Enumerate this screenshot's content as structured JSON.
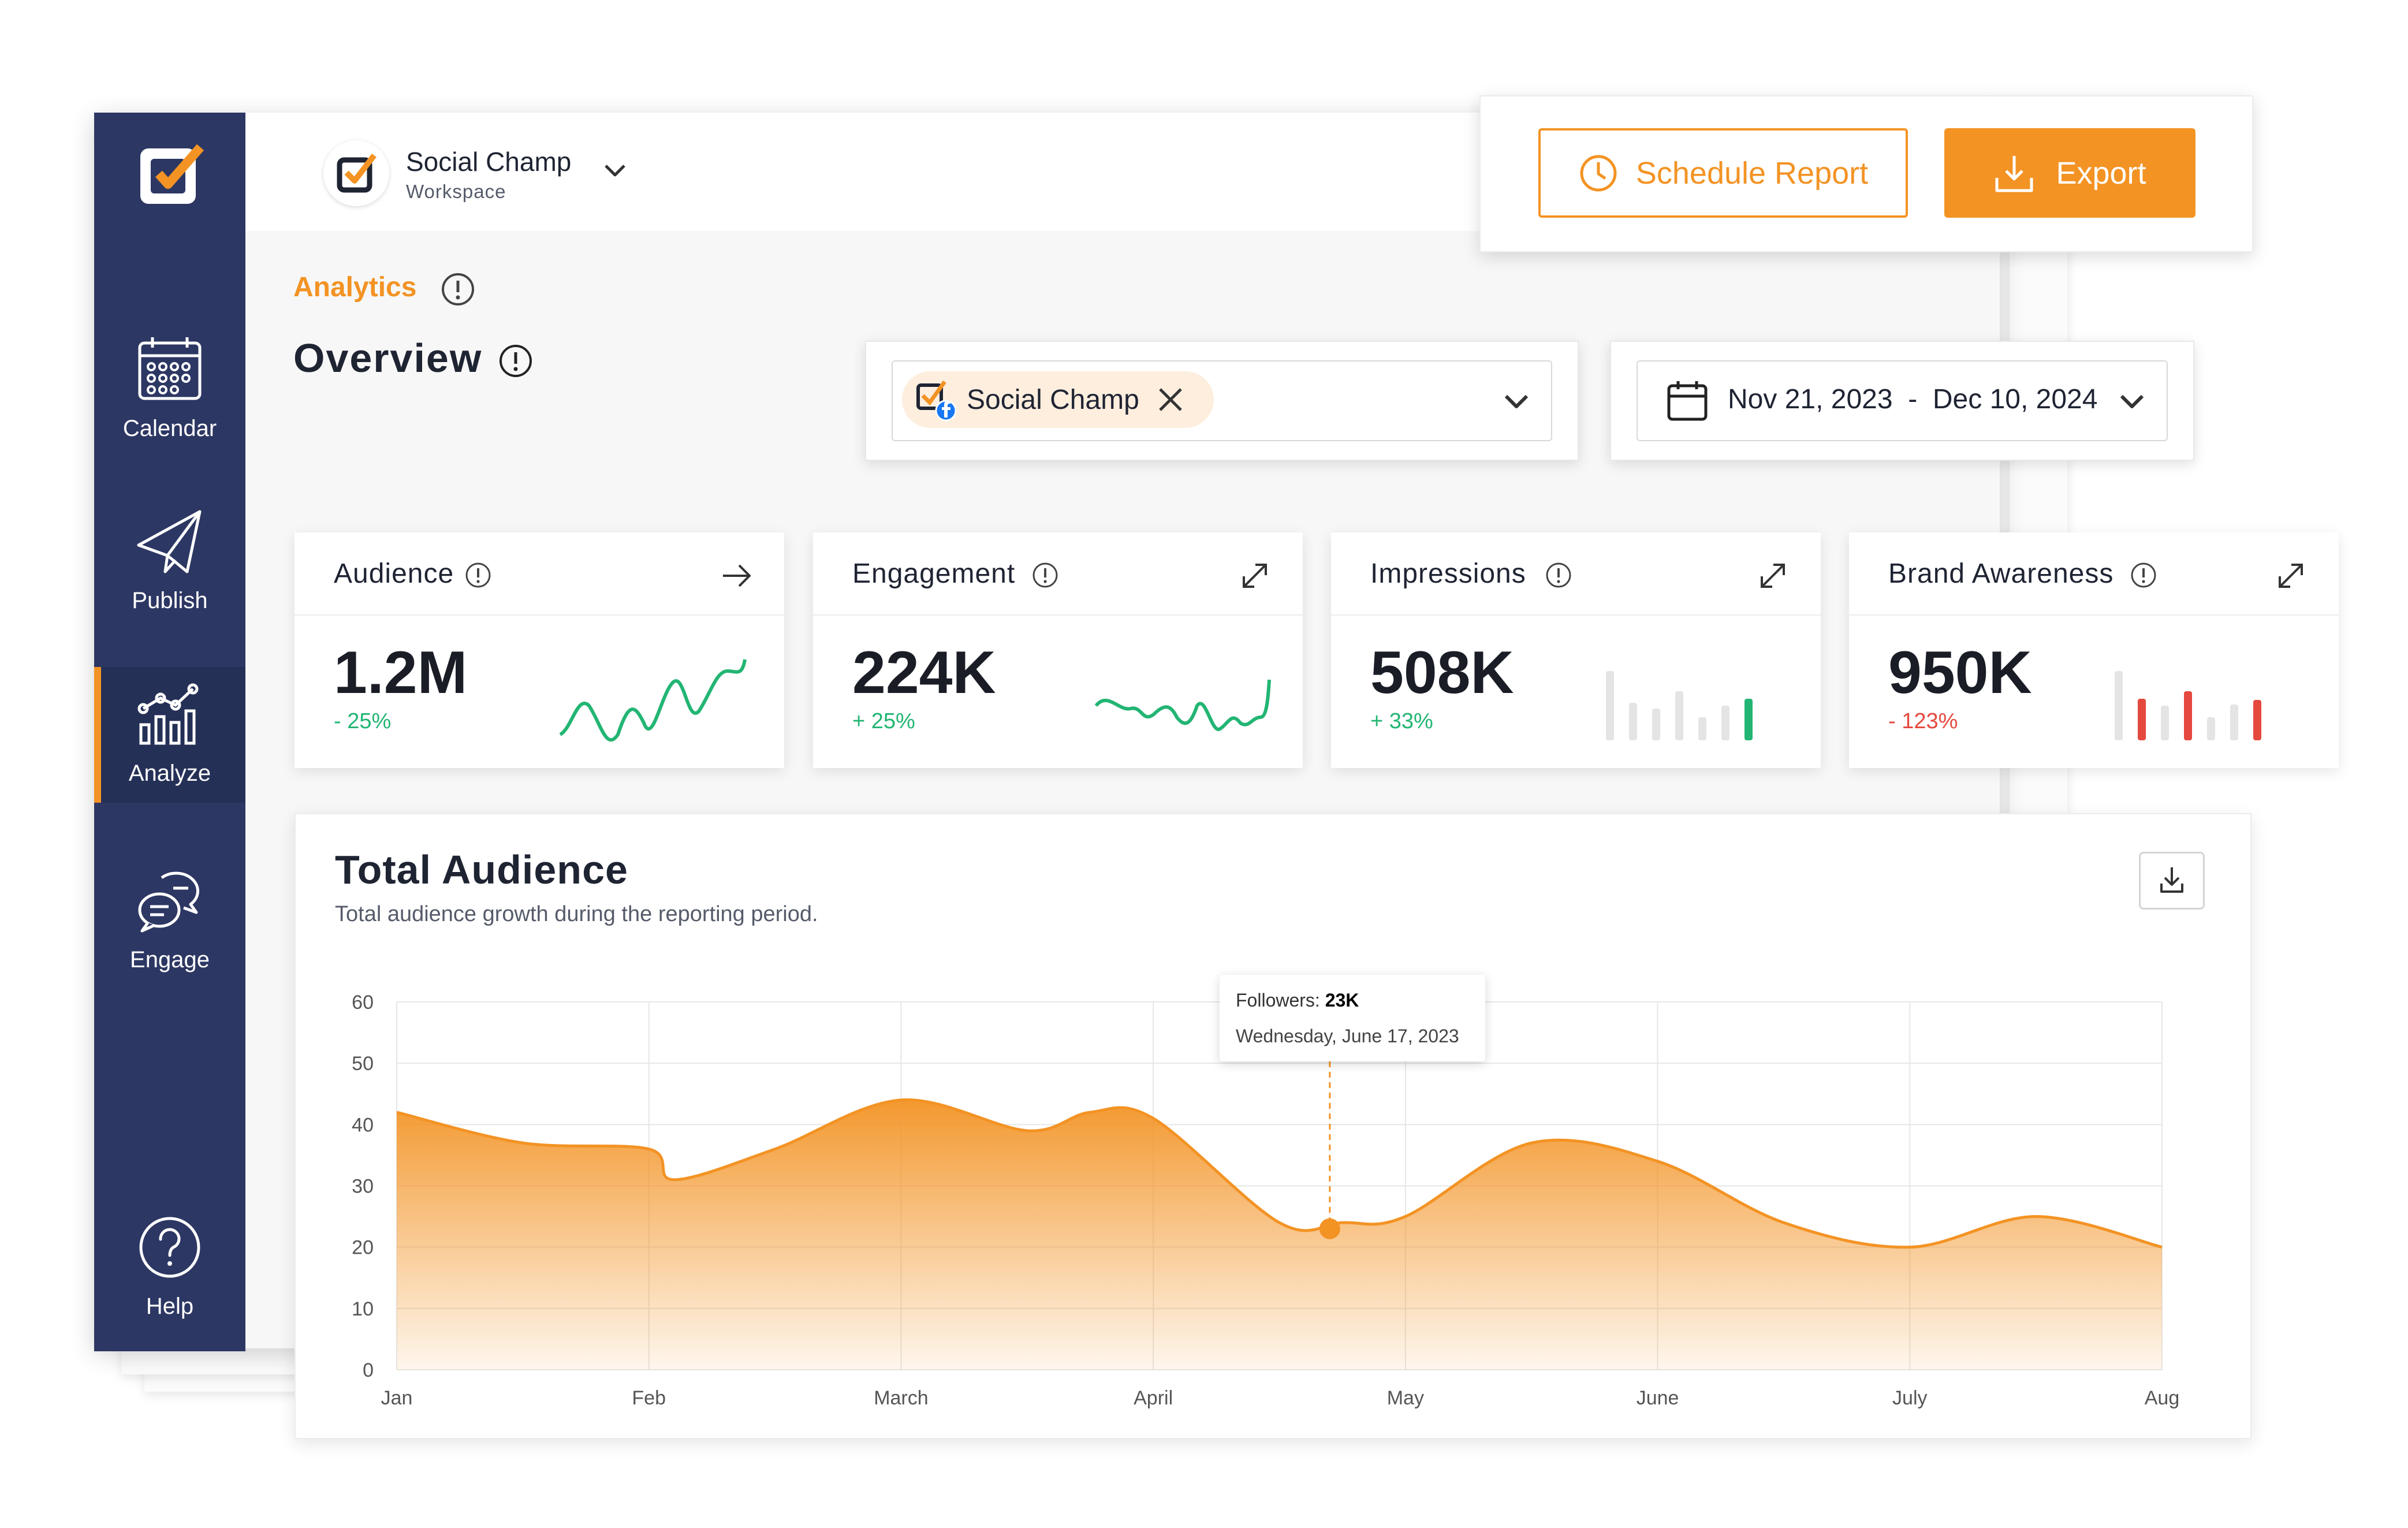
{
  "workspace": {
    "name": "Social Champ",
    "subtitle": "Workspace"
  },
  "sidebar": {
    "items": [
      {
        "label": "Calendar",
        "icon": "calendar-icon",
        "active": false
      },
      {
        "label": "Publish",
        "icon": "paper-plane-icon",
        "active": false
      },
      {
        "label": "Analyze",
        "icon": "analytics-icon",
        "active": true
      },
      {
        "label": "Engage",
        "icon": "chat-bubbles-icon",
        "active": false
      },
      {
        "label": "Help",
        "icon": "help-icon",
        "active": false
      }
    ]
  },
  "actions": {
    "schedule_label": "Schedule Report",
    "export_label": "Export"
  },
  "breadcrumb": "Analytics",
  "page_title": "Overview",
  "filters": {
    "account_chip": "Social Champ",
    "date_range": "Nov 21, 2023  -  Dec 10, 2024"
  },
  "stats": [
    {
      "label": "Audience",
      "value": "1.2M",
      "delta": "- 25%",
      "delta_color": "#22b573",
      "action_icon": "arrow-right-icon"
    },
    {
      "label": "Engagement",
      "value": "224K",
      "delta": "+ 25%",
      "delta_color": "#22b573",
      "action_icon": "expand-icon"
    },
    {
      "label": "Impressions",
      "value": "508K",
      "delta": "+ 33%",
      "delta_color": "#22b573",
      "action_icon": "expand-icon"
    },
    {
      "label": "Brand Awareness",
      "value": "950K",
      "delta": "- 123%",
      "delta_color": "#e5483f",
      "action_icon": "expand-icon"
    }
  ],
  "total_audience": {
    "title": "Total Audience",
    "subtitle": "Total audience growth during the reporting period.",
    "tooltip": {
      "metric_label": "Followers:",
      "metric_value": "23K",
      "date": "Wednesday, June 17, 2023"
    }
  },
  "colors": {
    "accent": "#f39324",
    "sidebar": "#2d3763",
    "positive": "#22b573",
    "negative": "#e5483f"
  },
  "chart_data": {
    "type": "area",
    "title": "Total Audience",
    "categories": [
      "Jan",
      "Feb",
      "March",
      "April",
      "May",
      "June",
      "July",
      "Aug"
    ],
    "x": [
      0,
      0.5,
      1,
      1.1,
      1.5,
      2,
      2.5,
      2.75,
      3,
      3.5,
      3.75,
      4,
      4.5,
      5,
      5.5,
      6,
      6.5,
      7
    ],
    "series": [
      {
        "values": [
          42,
          37,
          36,
          31,
          36,
          44,
          39,
          42,
          41,
          24,
          24,
          25,
          37,
          34,
          24,
          20,
          25,
          20
        ]
      }
    ],
    "ylim": [
      0,
      60
    ],
    "yticks": [
      0,
      10,
      20,
      30,
      40,
      50,
      60
    ],
    "grid": true,
    "highlight": {
      "x": 3.7,
      "y": 23
    }
  }
}
